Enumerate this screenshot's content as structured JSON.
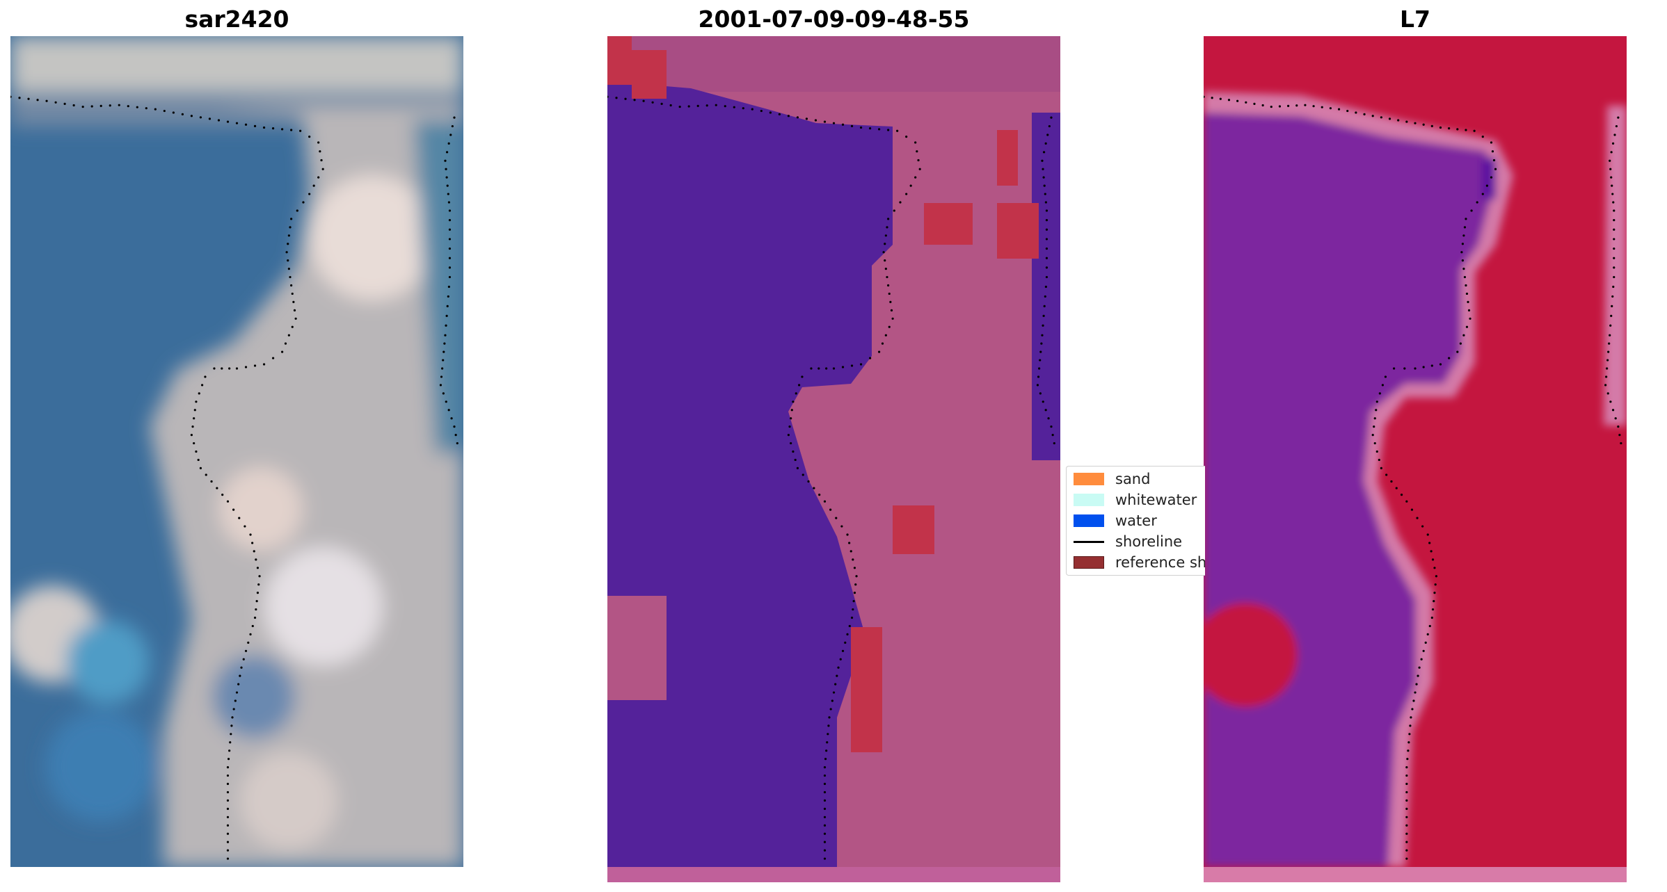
{
  "titles": {
    "left": "sar2420",
    "middle": "2001-07-09-09-48-55",
    "right": "L7"
  },
  "legend": [
    {
      "label": "sand",
      "color": "#ff8c3d",
      "kind": "patch"
    },
    {
      "label": "whitewater",
      "color": "#c9fbf4",
      "kind": "patch"
    },
    {
      "label": "water",
      "color": "#0050ee",
      "kind": "patch"
    },
    {
      "label": "shoreline",
      "color": "#000000",
      "kind": "line"
    },
    {
      "label": "reference shoreline",
      "color": "#952f31",
      "kind": "patch"
    }
  ],
  "colors": {
    "water_rgb": "#3a6f9e",
    "land_rgb": "#c5c5c5",
    "classified_water": "#54229a",
    "classified_land": "#b35585",
    "classified_reference": "#c2334a",
    "index_water": "#7d259f",
    "index_land": "#c4163f",
    "index_edge": "#d47aa8",
    "shoreline_points": "#000000"
  }
}
